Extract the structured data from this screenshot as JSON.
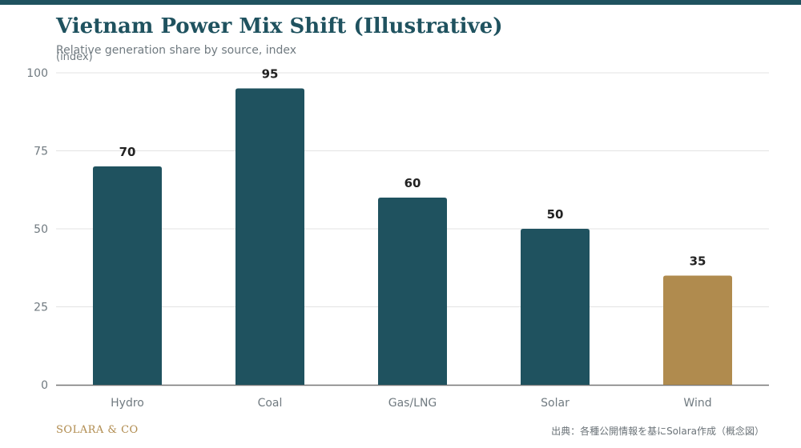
{
  "header": {
    "title": "Vietnam Power Mix Shift (Illustrative)",
    "subtitle": "Relative generation share by source, index",
    "unit_label": "(index)"
  },
  "footer": {
    "brand": "SOLARA & CO",
    "source": "出典：各種公開情報を基にSolara作成（概念図）"
  },
  "colors": {
    "primary": "#1f525f",
    "accent": "#b08b4e",
    "grid": "#e3e3e3",
    "axis": "#777777",
    "tick_text": "#707a80",
    "value_text": "#222222"
  },
  "chart_data": {
    "type": "bar",
    "categories": [
      "Hydro",
      "Coal",
      "Gas/LNG",
      "Solar",
      "Wind"
    ],
    "values": [
      70,
      95,
      60,
      50,
      35
    ],
    "highlight": [
      "no",
      "no",
      "no",
      "no",
      "yes"
    ],
    "ylim": [
      0,
      100
    ],
    "yticks": [
      0,
      25,
      50,
      75,
      100
    ],
    "grid": true,
    "data_labels": true
  }
}
